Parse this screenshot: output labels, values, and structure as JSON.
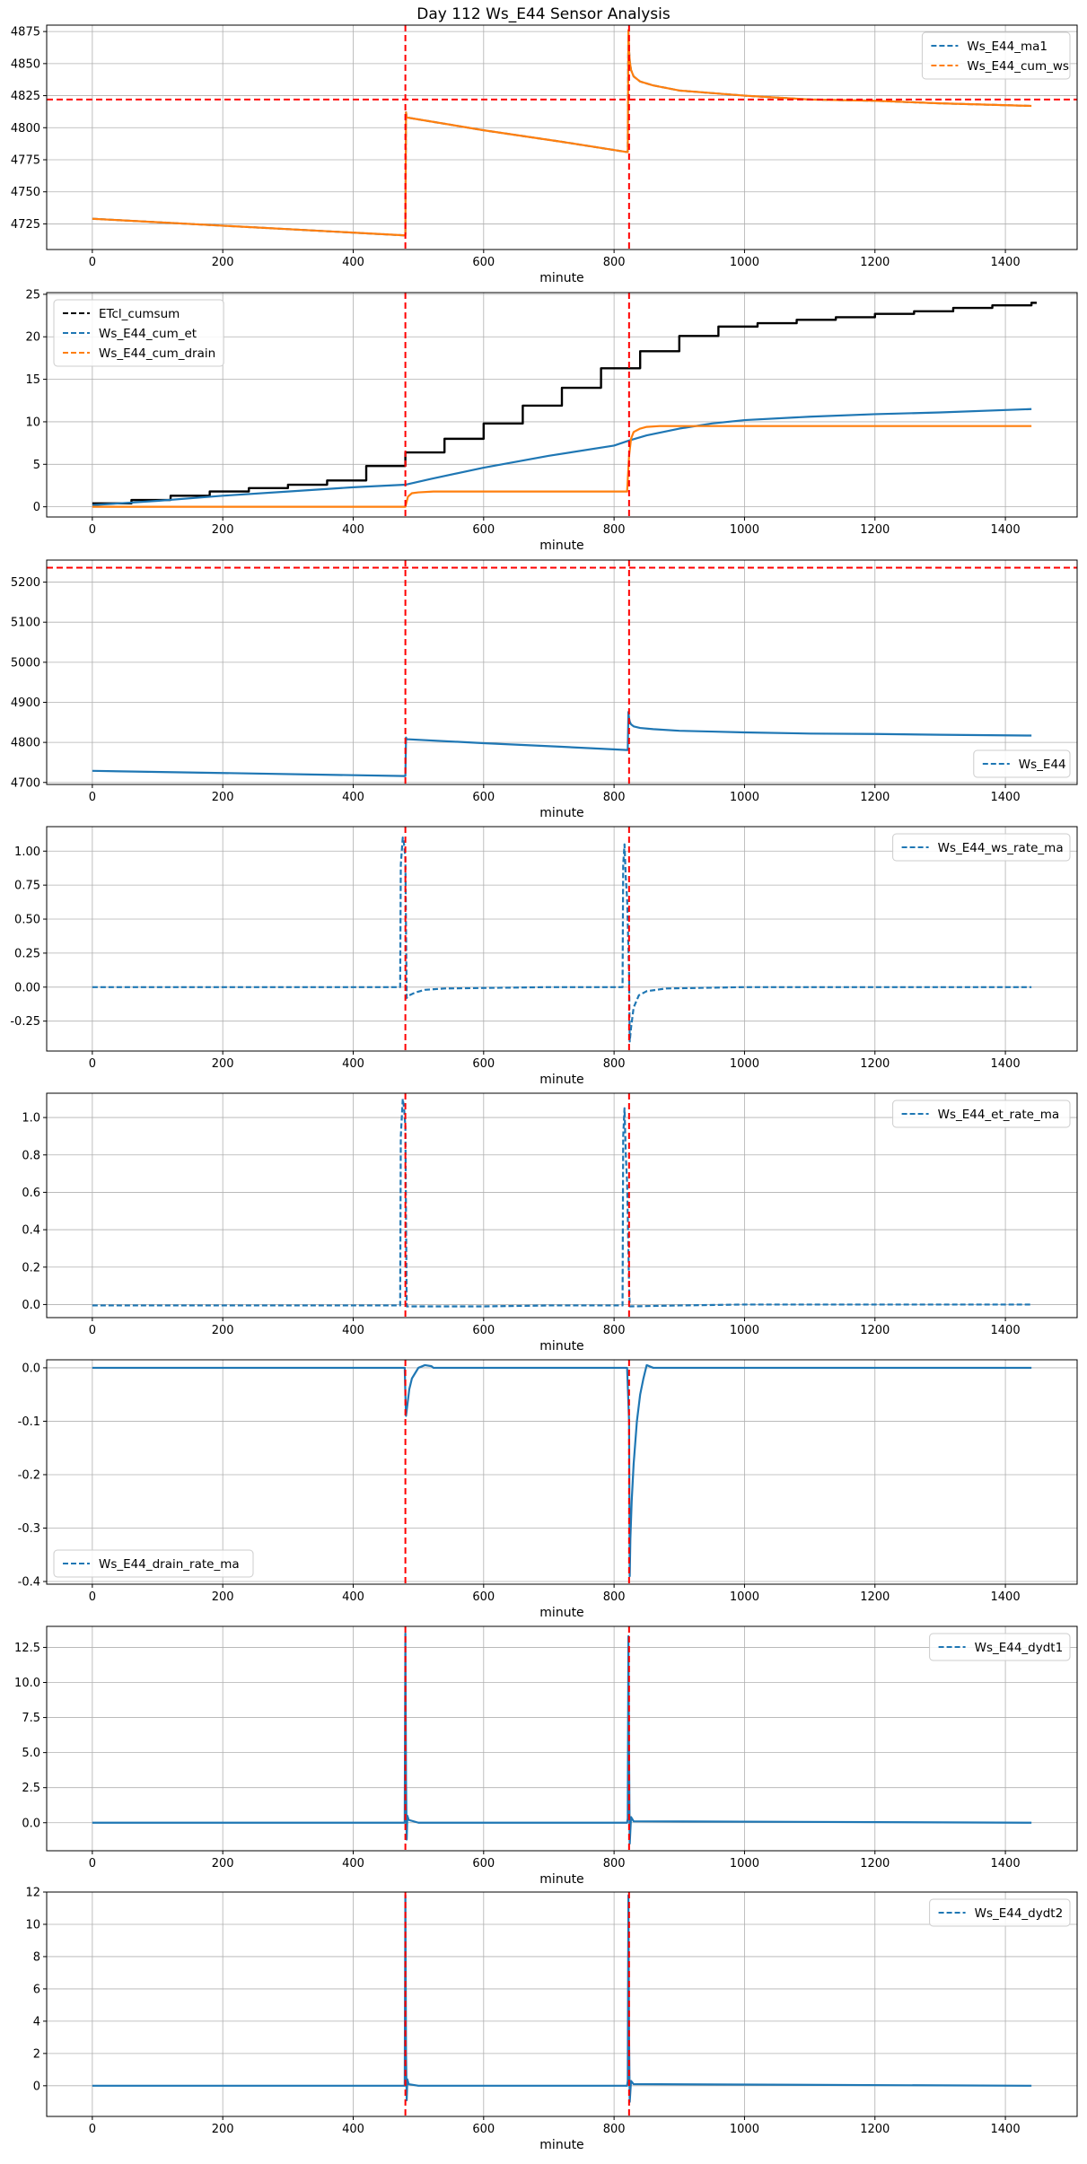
{
  "figure": {
    "title": "Day 112 Ws_E44 Sensor Analysis"
  },
  "colors": {
    "blue": "#1f77b4",
    "orange": "#ff7f0e",
    "black": "#000000",
    "red": "#ff0000",
    "grid": "#b0b0b0"
  },
  "chart_data": [
    {
      "type": "line",
      "xlabel": "minute",
      "ylabel": "",
      "xlim": [
        -70,
        1510
      ],
      "ylim": [
        4705,
        4880
      ],
      "xticks": [
        0,
        200,
        400,
        600,
        800,
        1000,
        1200,
        1400
      ],
      "yticks": [
        4725,
        4750,
        4775,
        4800,
        4825,
        4850,
        4875
      ],
      "grid": true,
      "legend_loc": "top-right",
      "vlines": [
        480,
        823
      ],
      "hlines": [
        4822
      ],
      "series": [
        {
          "name": "Ws_E44_ma1",
          "color": "blue",
          "style": "dashed",
          "legend_style": "dashed",
          "x": [
            0,
            480,
            481,
            482,
            600,
            720,
            820,
            821,
            822,
            823,
            824,
            826,
            830,
            840,
            860,
            900,
            950,
            1000,
            1100,
            1200,
            1300,
            1440
          ],
          "y": [
            4729,
            4716,
            4812,
            4808,
            4798,
            4789,
            4781,
            4781,
            4876,
            4860,
            4852,
            4845,
            4840,
            4836,
            4833,
            4829,
            4827,
            4825,
            4822,
            4821,
            4819,
            4817
          ]
        },
        {
          "name": "Ws_E44_cum_ws",
          "color": "orange",
          "style": "solid",
          "legend_style": "dashed",
          "x": [
            0,
            480,
            481,
            482,
            600,
            720,
            820,
            821,
            822,
            823,
            824,
            826,
            830,
            840,
            860,
            900,
            950,
            1000,
            1100,
            1200,
            1300,
            1440
          ],
          "y": [
            4729,
            4716,
            4812,
            4808,
            4798,
            4789,
            4781,
            4781,
            4876,
            4860,
            4852,
            4845,
            4840,
            4836,
            4833,
            4829,
            4827,
            4825,
            4822,
            4821,
            4819,
            4817
          ]
        }
      ]
    },
    {
      "type": "line",
      "xlabel": "minute",
      "ylabel": "",
      "xlim": [
        -70,
        1510
      ],
      "ylim": [
        -1.2,
        25.2
      ],
      "xticks": [
        0,
        200,
        400,
        600,
        800,
        1000,
        1200,
        1400
      ],
      "yticks": [
        0,
        5,
        10,
        15,
        20,
        25
      ],
      "grid": true,
      "legend_loc": "top-left",
      "vlines": [
        480,
        823
      ],
      "hlines": [],
      "series": [
        {
          "name": "ETcl_cumsum",
          "color": "black",
          "style": "step",
          "legend_style": "dashed",
          "x": [
            0,
            60,
            120,
            180,
            240,
            300,
            360,
            420,
            480,
            540,
            600,
            660,
            720,
            780,
            840,
            900,
            960,
            1020,
            1080,
            1140,
            1200,
            1260,
            1320,
            1380,
            1440
          ],
          "y": [
            0.4,
            0.8,
            1.3,
            1.8,
            2.2,
            2.6,
            3.1,
            4.8,
            6.4,
            8.0,
            9.8,
            11.9,
            14.0,
            16.3,
            18.3,
            20.1,
            21.2,
            21.6,
            22.0,
            22.3,
            22.7,
            23.0,
            23.4,
            23.7,
            24.0
          ]
        },
        {
          "name": "Ws_E44_cum_et",
          "color": "blue",
          "style": "solid",
          "legend_style": "dashed",
          "x": [
            0,
            100,
            200,
            300,
            400,
            480,
            520,
            600,
            700,
            800,
            823,
            850,
            900,
            950,
            1000,
            1100,
            1200,
            1300,
            1440
          ],
          "y": [
            0.2,
            0.7,
            1.3,
            1.8,
            2.3,
            2.6,
            3.3,
            4.6,
            6.0,
            7.2,
            7.8,
            8.4,
            9.2,
            9.8,
            10.2,
            10.6,
            10.9,
            11.1,
            11.5
          ]
        },
        {
          "name": "Ws_E44_cum_drain",
          "color": "orange",
          "style": "solid",
          "legend_style": "dashed",
          "x": [
            0,
            480,
            484,
            490,
            500,
            523,
            820,
            823,
            826,
            830,
            840,
            850,
            870,
            900,
            1440
          ],
          "y": [
            0,
            0,
            1.2,
            1.6,
            1.7,
            1.8,
            1.8,
            6.0,
            8.0,
            8.8,
            9.2,
            9.4,
            9.5,
            9.5,
            9.5
          ]
        }
      ]
    },
    {
      "type": "line",
      "xlabel": "minute",
      "ylabel": "",
      "xlim": [
        -70,
        1510
      ],
      "ylim": [
        4695,
        5255
      ],
      "xticks": [
        0,
        200,
        400,
        600,
        800,
        1000,
        1200,
        1400
      ],
      "yticks": [
        4700,
        4800,
        4900,
        5000,
        5100,
        5200
      ],
      "grid": true,
      "legend_loc": "bottom-right",
      "vlines": [
        480,
        823
      ],
      "hlines": [
        5236
      ],
      "series": [
        {
          "name": "Ws_E44",
          "color": "blue",
          "style": "solid",
          "legend_style": "dashed",
          "x": [
            0,
            480,
            481,
            482,
            600,
            720,
            820,
            821,
            822,
            823,
            824,
            826,
            830,
            840,
            860,
            900,
            950,
            1000,
            1100,
            1200,
            1300,
            1440
          ],
          "y": [
            4729,
            4716,
            4812,
            4808,
            4798,
            4789,
            4781,
            4781,
            4876,
            4860,
            4852,
            4845,
            4840,
            4836,
            4833,
            4829,
            4827,
            4825,
            4822,
            4821,
            4819,
            4817
          ]
        }
      ]
    },
    {
      "type": "line",
      "xlabel": "minute",
      "ylabel": "",
      "xlim": [
        -70,
        1510
      ],
      "ylim": [
        -0.47,
        1.18
      ],
      "xticks": [
        0,
        200,
        400,
        600,
        800,
        1000,
        1200,
        1400
      ],
      "yticks": [
        -0.25,
        0.0,
        0.25,
        0.5,
        0.75,
        1.0
      ],
      "grid": true,
      "legend_loc": "top-right",
      "vlines": [
        480,
        823
      ],
      "hlines": [],
      "series": [
        {
          "name": "Ws_E44_ws_rate_ma",
          "color": "blue",
          "style": "dashed",
          "legend_style": "dashed",
          "x": [
            0,
            472,
            473,
            476,
            478,
            480,
            482,
            486,
            495,
            510,
            540,
            700,
            813,
            814,
            816,
            818,
            820,
            823,
            824,
            826,
            830,
            838,
            850,
            880,
            1000,
            1440
          ],
          "y": [
            0,
            0,
            0.9,
            1.1,
            1.05,
            0.95,
            -0.08,
            -0.06,
            -0.04,
            -0.02,
            -0.01,
            0,
            0,
            0.9,
            1.05,
            0.8,
            0.65,
            0.1,
            -0.4,
            -0.3,
            -0.15,
            -0.06,
            -0.03,
            -0.01,
            0,
            0
          ]
        }
      ]
    },
    {
      "type": "line",
      "xlabel": "minute",
      "ylabel": "",
      "xlim": [
        -70,
        1510
      ],
      "ylim": [
        -0.07,
        1.13
      ],
      "xticks": [
        0,
        200,
        400,
        600,
        800,
        1000,
        1200,
        1400
      ],
      "yticks": [
        0.0,
        0.2,
        0.4,
        0.6,
        0.8,
        1.0
      ],
      "grid": true,
      "legend_loc": "top-right",
      "vlines": [
        480,
        823
      ],
      "hlines": [],
      "series": [
        {
          "name": "Ws_E44_et_rate_ma",
          "color": "blue",
          "style": "dashed",
          "legend_style": "dashed",
          "x": [
            0,
            472,
            473,
            476,
            478,
            480,
            482,
            600,
            700,
            813,
            814,
            816,
            818,
            820,
            823,
            824,
            900,
            1000,
            1440
          ],
          "y": [
            -0.005,
            -0.005,
            0.9,
            1.1,
            1.05,
            0.95,
            -0.01,
            -0.01,
            -0.005,
            -0.005,
            0.9,
            1.05,
            0.8,
            0.65,
            0.1,
            -0.01,
            -0.005,
            0,
            0
          ]
        }
      ]
    },
    {
      "type": "line",
      "xlabel": "minute",
      "ylabel": "",
      "xlim": [
        -70,
        1510
      ],
      "ylim": [
        -0.405,
        0.015
      ],
      "xticks": [
        0,
        200,
        400,
        600,
        800,
        1000,
        1200,
        1400
      ],
      "yticks": [
        -0.4,
        -0.3,
        -0.2,
        -0.1,
        0.0
      ],
      "grid": true,
      "legend_loc": "bottom-left",
      "vlines": [
        480,
        823
      ],
      "hlines": [],
      "series": [
        {
          "name": "Ws_E44_drain_rate_ma",
          "color": "blue",
          "style": "solid",
          "legend_style": "dashed",
          "x": [
            0,
            479,
            480,
            481,
            483,
            486,
            490,
            495,
            500,
            510,
            520,
            523,
            820,
            823,
            824,
            825,
            827,
            830,
            835,
            840,
            845,
            850,
            860,
            1440
          ],
          "y": [
            0,
            0,
            -0.05,
            -0.09,
            -0.07,
            -0.04,
            -0.02,
            -0.01,
            0,
            0.005,
            0.003,
            0,
            0,
            -0.1,
            -0.39,
            -0.32,
            -0.25,
            -0.18,
            -0.1,
            -0.05,
            -0.02,
            0.005,
            0,
            0
          ]
        }
      ]
    },
    {
      "type": "line",
      "xlabel": "minute",
      "ylabel": "",
      "xlim": [
        -70,
        1510
      ],
      "ylim": [
        -2.0,
        14.0
      ],
      "xticks": [
        0,
        200,
        400,
        600,
        800,
        1000,
        1200,
        1400
      ],
      "yticks": [
        0.0,
        2.5,
        5.0,
        7.5,
        10.0,
        12.5
      ],
      "grid": true,
      "legend_loc": "top-right",
      "vlines": [
        480,
        823
      ],
      "hlines": [],
      "series": [
        {
          "name": "Ws_E44_dydt1",
          "color": "blue",
          "style": "solid",
          "legend_style": "dashed",
          "x": [
            0,
            479,
            480,
            481,
            482,
            483,
            485,
            500,
            820,
            821,
            822,
            823,
            824,
            826,
            830,
            1440
          ],
          "y": [
            0,
            0,
            13.5,
            3,
            -1.2,
            0.5,
            0.2,
            0,
            0,
            0.3,
            13.3,
            5,
            -1.5,
            0.4,
            0.1,
            0
          ]
        }
      ]
    },
    {
      "type": "line",
      "xlabel": "minute",
      "ylabel": "",
      "xlim": [
        -70,
        1510
      ],
      "ylim": [
        -1.9,
        12.0
      ],
      "xticks": [
        0,
        200,
        400,
        600,
        800,
        1000,
        1200,
        1400
      ],
      "yticks": [
        0,
        2,
        4,
        6,
        8,
        10,
        12
      ],
      "grid": true,
      "legend_loc": "top-right",
      "vlines": [
        480,
        823
      ],
      "hlines": [],
      "series": [
        {
          "name": "Ws_E44_dydt2",
          "color": "blue",
          "style": "solid",
          "legend_style": "dashed",
          "x": [
            0,
            479,
            480,
            481,
            482,
            483,
            485,
            500,
            820,
            821,
            822,
            823,
            824,
            826,
            830,
            1440
          ],
          "y": [
            0,
            0,
            11.8,
            2,
            -0.9,
            0.4,
            0.1,
            0,
            0,
            0.3,
            11.8,
            3,
            -1.0,
            0.3,
            0.1,
            0
          ]
        }
      ]
    }
  ]
}
